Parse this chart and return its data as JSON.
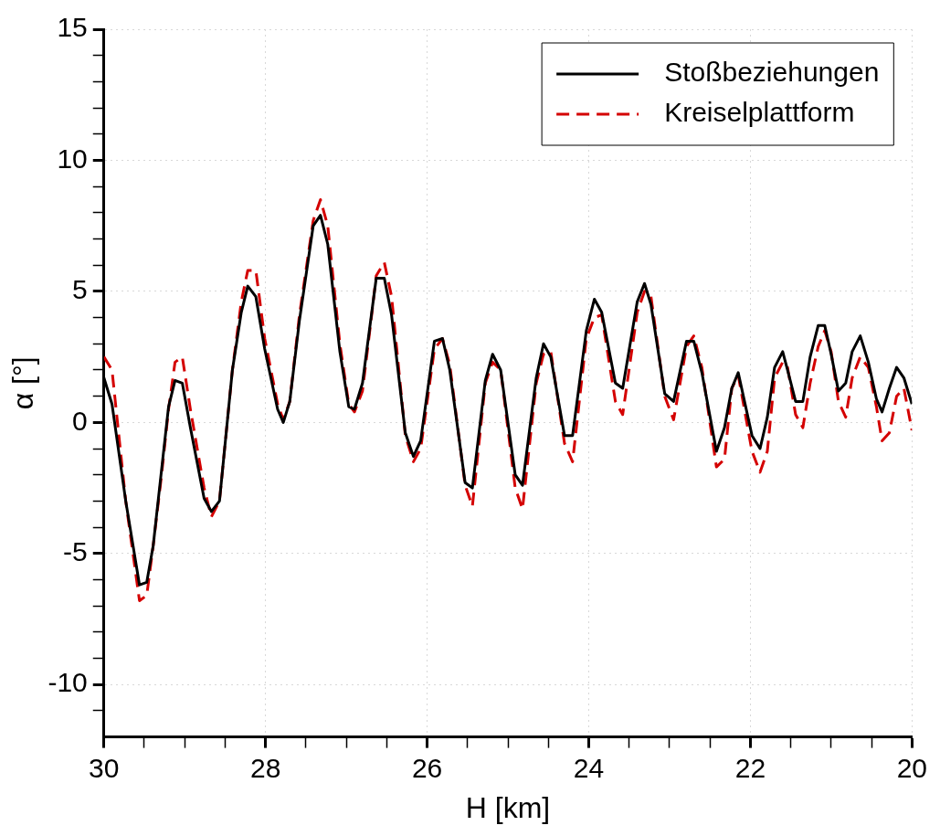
{
  "chart_data": {
    "type": "line",
    "xlabel": "H [km]",
    "ylabel": "α [°]",
    "xlim": [
      30,
      20
    ],
    "ylim": [
      -12,
      15
    ],
    "xticks": [
      30,
      {
        "value": 29.5,
        "label": null
      },
      {
        "value": 29,
        "label": null
      },
      {
        "value": 28.5,
        "label": null
      },
      28,
      {
        "value": 27.5,
        "label": null
      },
      {
        "value": 27,
        "label": null
      },
      {
        "value": 26.5,
        "label": null
      },
      26,
      {
        "value": 25.5,
        "label": null
      },
      {
        "value": 25,
        "label": null
      },
      {
        "value": 24.5,
        "label": null
      },
      24,
      {
        "value": 23.5,
        "label": null
      },
      {
        "value": 23,
        "label": null
      },
      {
        "value": 22.5,
        "label": null
      },
      22,
      {
        "value": 21.5,
        "label": null
      },
      {
        "value": 21,
        "label": null
      },
      {
        "value": 20.5,
        "label": null
      },
      20
    ],
    "yticks": [
      {
        "value": -11,
        "label": null
      },
      -10,
      {
        "value": -9,
        "label": null
      },
      {
        "value": -8,
        "label": null
      },
      {
        "value": -7,
        "label": null
      },
      {
        "value": -6,
        "label": null
      },
      -5,
      {
        "value": -4,
        "label": null
      },
      {
        "value": -3,
        "label": null
      },
      {
        "value": -2,
        "label": null
      },
      {
        "value": -1,
        "label": null
      },
      0,
      {
        "value": 1,
        "label": null
      },
      {
        "value": 2,
        "label": null
      },
      {
        "value": 3,
        "label": null
      },
      {
        "value": 4,
        "label": null
      },
      5,
      {
        "value": 6,
        "label": null
      },
      {
        "value": 7,
        "label": null
      },
      {
        "value": 8,
        "label": null
      },
      {
        "value": 9,
        "label": null
      },
      10,
      {
        "value": 11,
        "label": null
      },
      {
        "value": 12,
        "label": null
      },
      {
        "value": 13,
        "label": null
      },
      {
        "value": 14,
        "label": null
      },
      15
    ],
    "grid": true,
    "legend": "top right",
    "x": [
      30.0,
      29.9,
      29.73,
      29.56,
      29.47,
      29.39,
      29.29,
      29.2,
      29.12,
      29.03,
      28.93,
      28.76,
      28.67,
      28.57,
      28.41,
      28.3,
      28.22,
      28.12,
      28.01,
      27.85,
      27.78,
      27.7,
      27.58,
      27.41,
      27.32,
      27.23,
      27.08,
      26.97,
      26.9,
      26.8,
      26.69,
      26.63,
      26.53,
      26.44,
      26.27,
      26.17,
      26.08,
      25.91,
      25.81,
      25.72,
      25.53,
      25.44,
      25.28,
      25.19,
      25.09,
      24.91,
      24.82,
      24.65,
      24.56,
      24.47,
      24.3,
      24.2,
      24.03,
      23.93,
      23.84,
      23.67,
      23.58,
      23.4,
      23.31,
      23.23,
      23.06,
      22.95,
      22.79,
      22.7,
      22.6,
      22.42,
      22.32,
      22.23,
      22.15,
      21.98,
      21.88,
      21.79,
      21.7,
      21.6,
      21.54,
      21.44,
      21.35,
      21.26,
      21.16,
      21.08,
      21.0,
      20.91,
      20.82,
      20.74,
      20.64,
      20.54,
      20.44,
      20.37,
      20.28,
      20.19,
      20.1,
      20.0
    ],
    "series": [
      {
        "name": "Stoßbeziehungen",
        "color": "#000000",
        "line_style": "solid",
        "values": [
          1.7,
          0.7,
          -3.0,
          -6.2,
          -6.1,
          -4.7,
          -1.9,
          0.6,
          1.6,
          1.5,
          -0.2,
          -2.9,
          -3.4,
          -3.0,
          2.0,
          4.2,
          5.2,
          4.8,
          2.8,
          0.5,
          0.0,
          0.8,
          3.9,
          7.5,
          7.9,
          6.8,
          2.7,
          0.6,
          0.5,
          1.5,
          4.1,
          5.5,
          5.5,
          4.1,
          -0.4,
          -1.3,
          -0.7,
          3.1,
          3.2,
          2.0,
          -2.3,
          -2.5,
          1.6,
          2.6,
          2.0,
          -2.0,
          -2.4,
          1.7,
          3.0,
          2.5,
          -0.5,
          -0.5,
          3.5,
          4.7,
          4.2,
          1.5,
          1.3,
          4.6,
          5.3,
          4.5,
          1.1,
          0.8,
          3.1,
          3.1,
          1.9,
          -1.1,
          -0.2,
          1.3,
          1.9,
          -0.5,
          -1.0,
          0.2,
          2.1,
          2.7,
          2.0,
          0.8,
          0.8,
          2.5,
          3.7,
          3.7,
          2.6,
          1.2,
          1.5,
          2.7,
          3.3,
          2.3,
          0.9,
          0.4,
          1.3,
          2.1,
          1.7,
          0.7
        ]
      },
      {
        "name": "Kreiselplattform",
        "color": "#d40000",
        "line_style": "dashed",
        "values": [
          2.5,
          2.0,
          -3.0,
          -6.8,
          -6.6,
          -4.7,
          -2.1,
          0.5,
          2.3,
          2.5,
          0.5,
          -2.5,
          -3.6,
          -3.0,
          2.0,
          4.6,
          5.8,
          5.8,
          3.2,
          0.7,
          0.1,
          0.8,
          4.1,
          7.7,
          8.5,
          7.5,
          3.0,
          0.7,
          0.4,
          1.2,
          4.0,
          5.6,
          6.1,
          4.8,
          -0.5,
          -1.5,
          -1.0,
          2.8,
          3.2,
          2.2,
          -2.4,
          -3.2,
          1.5,
          2.3,
          2.0,
          -2.5,
          -3.3,
          1.5,
          2.6,
          2.7,
          -0.8,
          -1.5,
          3.2,
          4.0,
          4.1,
          0.8,
          0.3,
          4.2,
          5.0,
          4.8,
          1.0,
          0.1,
          2.9,
          3.3,
          2.1,
          -1.7,
          -1.4,
          1.3,
          1.8,
          -1.1,
          -1.9,
          -1.1,
          1.7,
          2.3,
          2.1,
          0.3,
          -0.2,
          1.5,
          2.9,
          3.5,
          2.7,
          0.8,
          0.2,
          1.7,
          2.5,
          2.1,
          0.6,
          -0.7,
          -0.4,
          1.0,
          1.3,
          -0.3
        ]
      }
    ]
  }
}
